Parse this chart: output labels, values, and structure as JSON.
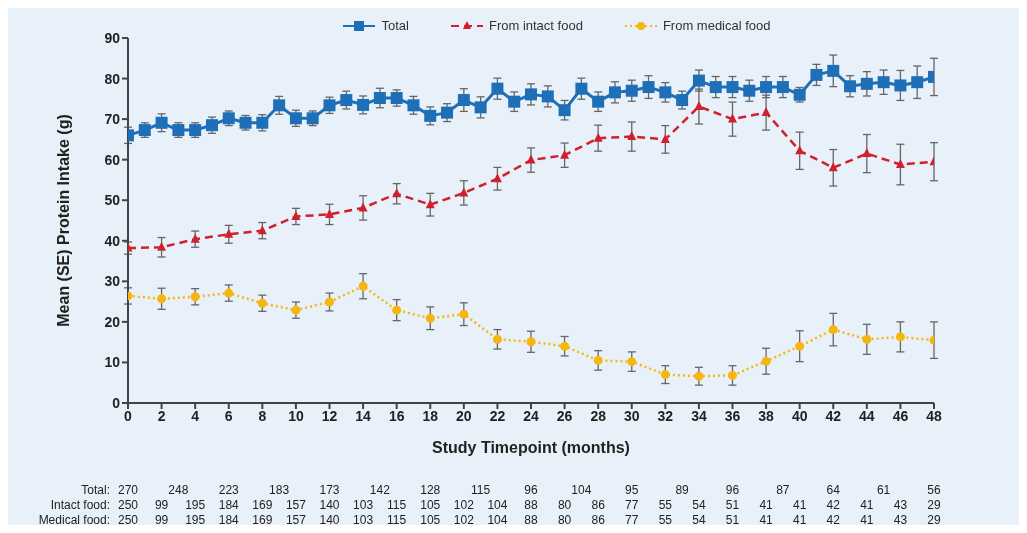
{
  "chart_data": {
    "type": "line",
    "xlabel": "Study Timepoint (months)",
    "ylabel": "Mean (SE) Protein Intake (g)",
    "xlim": [
      0,
      48
    ],
    "xticks": [
      0,
      2,
      4,
      6,
      8,
      10,
      12,
      14,
      16,
      18,
      20,
      22,
      24,
      26,
      28,
      30,
      32,
      34,
      36,
      38,
      40,
      42,
      44,
      46,
      48
    ],
    "ylim": [
      0,
      90
    ],
    "yticks": [
      0,
      10,
      20,
      30,
      40,
      50,
      60,
      70,
      80,
      90
    ],
    "legend": "top",
    "series": [
      {
        "name": "Total",
        "color": "#1f6fb8",
        "marker": "square",
        "line_style": "solid",
        "x": [
          0,
          1,
          2,
          3,
          4,
          5,
          6,
          7,
          8,
          9,
          10,
          11,
          12,
          13,
          14,
          15,
          16,
          17,
          18,
          19,
          20,
          21,
          22,
          23,
          24,
          25,
          26,
          27,
          28,
          29,
          30,
          31,
          32,
          33,
          34,
          35,
          36,
          37,
          38,
          39,
          40,
          41,
          42,
          43,
          44,
          45,
          46,
          47,
          48
        ],
        "values": [
          66.0,
          67.3,
          69.1,
          67.3,
          67.3,
          68.5,
          70.2,
          69.1,
          69.1,
          73.4,
          70.2,
          70.2,
          73.4,
          74.7,
          73.5,
          75.2,
          75.2,
          73.4,
          70.8,
          71.6,
          74.7,
          72.9,
          77.5,
          74.3,
          76.1,
          75.6,
          72.2,
          77.5,
          74.3,
          76.6,
          77.0,
          77.9,
          76.6,
          74.7,
          79.5,
          77.9,
          77.9,
          77.0,
          77.9,
          77.9,
          76.0,
          80.9,
          81.9,
          78.1,
          78.7,
          79.1,
          78.3,
          79.1,
          80.4
        ],
        "errors": [
          2,
          1.8,
          2.2,
          1.8,
          1.8,
          2,
          1.8,
          1.8,
          2,
          2.2,
          2,
          1.8,
          2,
          2.2,
          2.2,
          2.4,
          2,
          2.2,
          2.2,
          2.2,
          2.8,
          2.6,
          2.6,
          2.4,
          2.6,
          2.6,
          2.4,
          2.6,
          2.4,
          2.6,
          2.6,
          2.8,
          2.4,
          2.2,
          2.6,
          2.6,
          2.6,
          2.6,
          2.6,
          2.6,
          1.8,
          2.6,
          3.9,
          2.6,
          3,
          3,
          3.7,
          4,
          4.6
        ]
      },
      {
        "name": "From intact food",
        "color": "#d0202e",
        "marker": "triangle",
        "line_style": "dashed",
        "x": [
          0,
          2,
          4,
          6,
          8,
          10,
          12,
          14,
          16,
          18,
          20,
          22,
          24,
          26,
          28,
          30,
          32,
          34,
          36,
          38,
          40,
          42,
          44,
          46,
          48
        ],
        "values": [
          38.2,
          38.4,
          40.4,
          41.6,
          42.5,
          46.0,
          46.5,
          48.1,
          51.6,
          48.9,
          51.8,
          55.3,
          59.9,
          61.1,
          65.3,
          65.7,
          65.0,
          73.1,
          70.0,
          71.6,
          62.2,
          58.0,
          61.5,
          58.8,
          59.5
        ],
        "errors": [
          1.5,
          2.4,
          2,
          2.2,
          2,
          2,
          2.5,
          3,
          2.5,
          2.8,
          3,
          2.8,
          3,
          3,
          3.2,
          3.6,
          3.4,
          4.3,
          4.2,
          4.3,
          4.6,
          4.5,
          4.7,
          5,
          4.7
        ]
      },
      {
        "name": "From medical food",
        "color": "#f5b70f",
        "marker": "circle",
        "line_style": "dotted",
        "x": [
          0,
          2,
          4,
          6,
          8,
          10,
          12,
          14,
          16,
          18,
          20,
          22,
          24,
          26,
          28,
          30,
          32,
          34,
          36,
          38,
          40,
          42,
          44,
          46,
          48
        ],
        "values": [
          26.4,
          25.7,
          26.2,
          27.1,
          24.6,
          22.9,
          24.9,
          28.8,
          22.9,
          20.9,
          21.9,
          15.7,
          15.1,
          14.0,
          10.5,
          10.2,
          7.0,
          6.6,
          6.8,
          10.3,
          14.0,
          18.1,
          15.7,
          16.3,
          15.5
        ],
        "errors": [
          2,
          2.6,
          2,
          2,
          2,
          2,
          2.2,
          3.1,
          2.6,
          2.8,
          2.8,
          2.4,
          2.6,
          2.4,
          2.4,
          2.4,
          2.2,
          2.2,
          2.4,
          3.2,
          3.8,
          4,
          3.7,
          3.7,
          4.5
        ]
      }
    ],
    "annotations": [
      "Total: 270 248 223 183 173 142 128 115 96 104 95 89 96 87 64 61 56",
      "Intact food: 250 99 195 184 169 157 140 103 115 105 102 104 88 80 86 77 55 54 51 41 41 42 41 43 29",
      "Medical food: 250 99 195 184 169 157 140 103 115 105 102 104 88 80 86 77 55 54 51 41 41 42 41 43 29"
    ]
  }
}
